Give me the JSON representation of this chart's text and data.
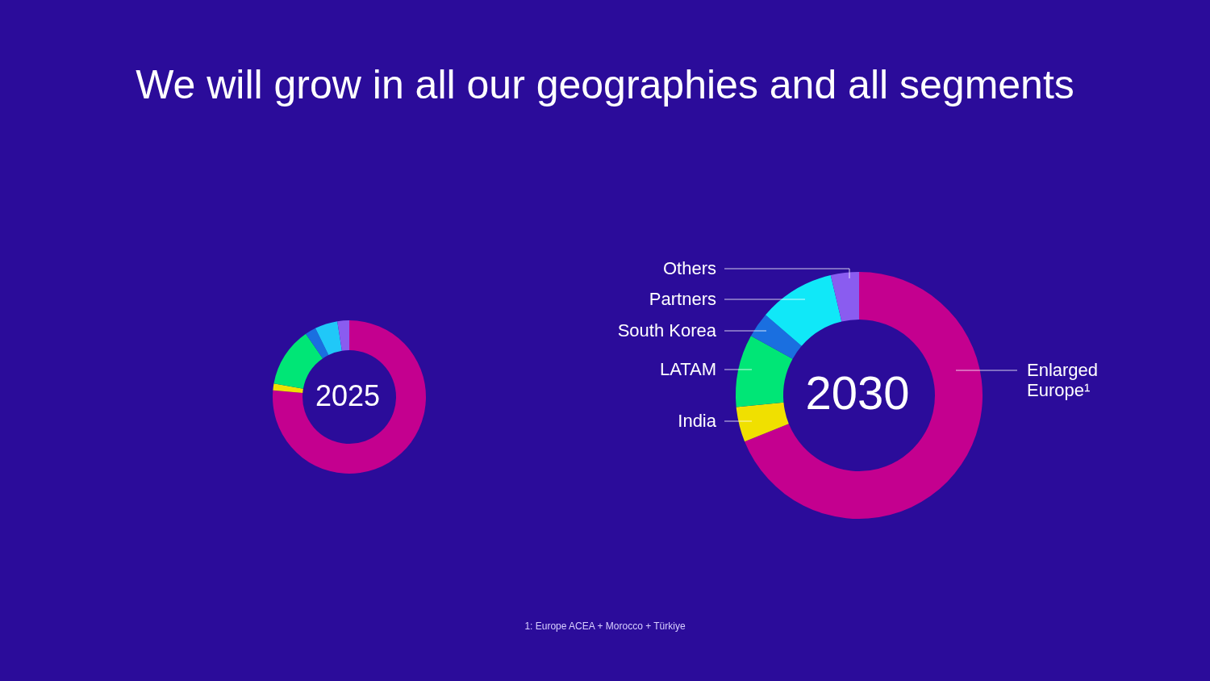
{
  "chart_data": [
    {
      "type": "donut",
      "title": "We will grow in all our geographies and all segments",
      "categories": [
        null,
        null,
        null,
        null,
        null,
        null
      ],
      "values": [
        76.4,
        1.4,
        12.6,
        2.3,
        4.8,
        2.5
      ],
      "colors": [
        "#c4008f",
        "#f0e000",
        "#00e676",
        "#1a6fe0",
        "#20c8f8",
        "#8a5cf0"
      ],
      "annotations": [
        "2025"
      ]
    },
    {
      "type": "donut",
      "categories": [
        "Enlarged Europe¹",
        "India",
        "LATAM",
        "South Korea",
        "Partners",
        "Others"
      ],
      "values": [
        68.9,
        4.6,
        9.5,
        3.3,
        10.0,
        3.7
      ],
      "colors": [
        "#c4008f",
        "#f0e000",
        "#00e676",
        "#1a6fe0",
        "#10e8f8",
        "#8a5cf0"
      ],
      "annotations": [
        "2030",
        "1: Europe ACEA + Morocco + Türkiye"
      ]
    }
  ]
}
